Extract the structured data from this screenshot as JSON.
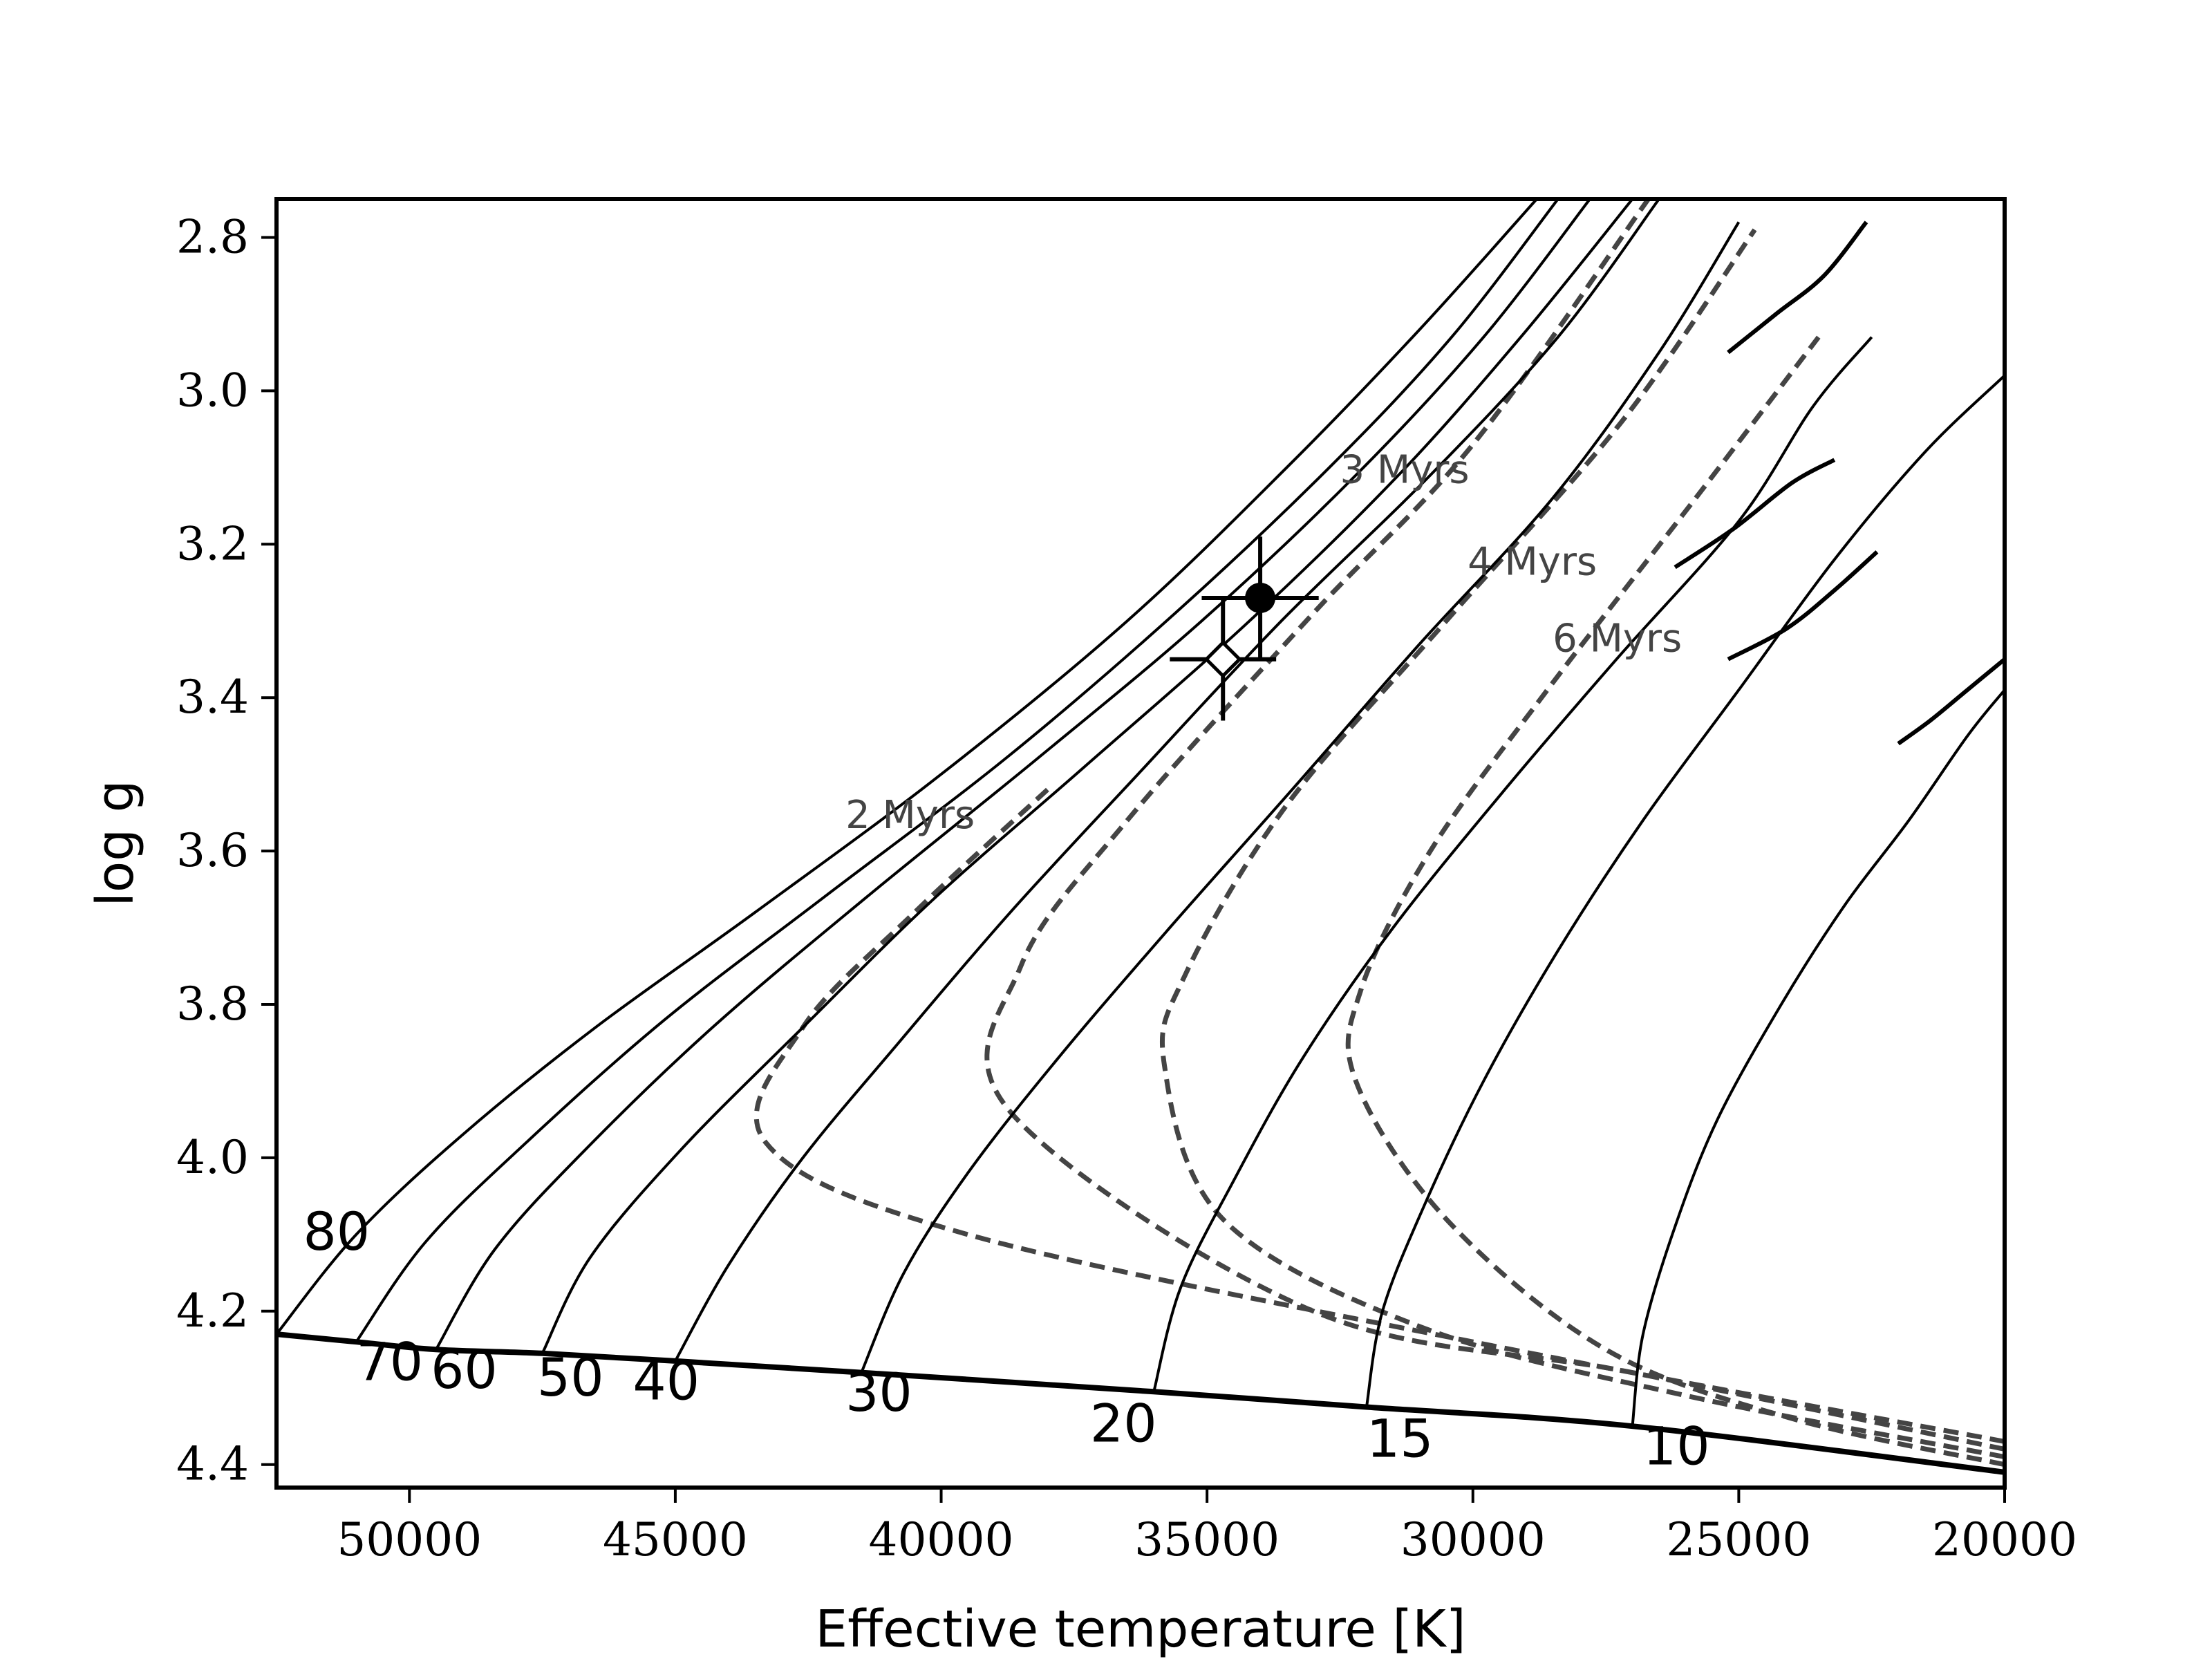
{
  "chart_data": {
    "type": "line",
    "title": "",
    "xlabel": "Effective temperature [K]",
    "ylabel": "log g",
    "xlim": [
      52500,
      20000
    ],
    "ylim": [
      4.43,
      2.75
    ],
    "x_inverted": true,
    "y_inverted": true,
    "x_ticks": [
      50000,
      45000,
      40000,
      35000,
      30000,
      25000,
      20000
    ],
    "x_tick_labels": [
      "50000",
      "45000",
      "40000",
      "35000",
      "30000",
      "25000",
      "20000"
    ],
    "y_ticks": [
      2.8,
      3.0,
      3.2,
      3.4,
      3.6,
      3.8,
      4.0,
      4.2,
      4.4
    ],
    "y_tick_labels": [
      "2.8",
      "3.0",
      "3.2",
      "3.4",
      "3.6",
      "3.8",
      "4.0",
      "4.2",
      "4.4"
    ],
    "grid": false,
    "legend": "none",
    "colors": {
      "tracks": "#000000",
      "isochrones": "#444444",
      "zams": "#000000"
    },
    "zams": {
      "x": [
        52500,
        51000,
        49500,
        47500,
        45000,
        41500,
        36000,
        32000,
        27000,
        20000
      ],
      "y": [
        4.23,
        4.24,
        4.25,
        4.255,
        4.265,
        4.28,
        4.305,
        4.325,
        4.35,
        4.41
      ]
    },
    "tracks": [
      {
        "mass_label": "80",
        "x": [
          52500,
          51000,
          49000,
          46500,
          43500,
          40000,
          36500,
          33500,
          31000,
          28800
        ],
        "y": [
          4.23,
          4.1,
          3.97,
          3.83,
          3.68,
          3.5,
          3.3,
          3.1,
          2.92,
          2.75
        ]
      },
      {
        "mass_label": "70",
        "x": [
          51000,
          49700,
          47800,
          45200,
          42200,
          38800,
          35600,
          32700,
          30400,
          28400
        ],
        "y": [
          4.24,
          4.11,
          3.98,
          3.82,
          3.66,
          3.48,
          3.29,
          3.1,
          2.93,
          2.75
        ]
      },
      {
        "mass_label": "60",
        "x": [
          49500,
          48400,
          46700,
          44300,
          41400,
          38200,
          35100,
          32200,
          29800,
          27800
        ],
        "y": [
          4.25,
          4.12,
          3.99,
          3.83,
          3.66,
          3.48,
          3.3,
          3.11,
          2.93,
          2.75
        ]
      },
      {
        "mass_label": "50",
        "x": [
          47500,
          46600,
          44900,
          42600,
          40100,
          37300,
          34200,
          31400,
          29100,
          27000
        ],
        "y": [
          4.255,
          4.13,
          3.99,
          3.83,
          3.66,
          3.49,
          3.3,
          3.11,
          2.93,
          2.75
        ]
      },
      {
        "mass_label": "40",
        "x": [
          45000,
          44000,
          42600,
          40800,
          38700,
          36300,
          33600,
          30800,
          28400,
          26500
        ],
        "y": [
          4.265,
          4.14,
          4.0,
          3.85,
          3.68,
          3.5,
          3.3,
          3.11,
          2.93,
          2.75
        ]
      },
      {
        "mass_label": "30",
        "x": [
          41500,
          40700,
          39500,
          37800,
          35700,
          33400,
          31000,
          28500,
          26500,
          25000
        ],
        "y": [
          4.28,
          4.15,
          4.02,
          3.87,
          3.7,
          3.52,
          3.33,
          3.14,
          2.95,
          2.78
        ]
      },
      {
        "mass_label": "20",
        "x": [
          36000,
          35500,
          34500,
          33200,
          31500,
          29400,
          27300,
          25000,
          23600,
          22500
        ],
        "y": [
          4.305,
          4.17,
          4.03,
          3.87,
          3.7,
          3.52,
          3.35,
          3.17,
          3.02,
          2.93
        ]
      },
      {
        "mass_label": "15",
        "x": [
          32000,
          31700,
          30900,
          29800,
          28400,
          26800,
          25000,
          23200,
          21500,
          20000
        ],
        "y": [
          4.325,
          4.2,
          4.06,
          3.9,
          3.73,
          3.56,
          3.39,
          3.22,
          3.08,
          2.98
        ]
      },
      {
        "mass_label": "10",
        "x": [
          27000,
          26800,
          26200,
          25400,
          24200,
          23000,
          21800,
          20700,
          20000
        ],
        "y": [
          4.35,
          4.23,
          4.09,
          3.95,
          3.8,
          3.67,
          3.56,
          3.45,
          3.39
        ]
      }
    ],
    "track_hooks": [
      {
        "x": [
          25200,
          24300,
          23400,
          22600
        ],
        "y": [
          2.95,
          2.9,
          2.85,
          2.78
        ]
      },
      {
        "x": [
          26200,
          25100,
          24000,
          23200
        ],
        "y": [
          3.23,
          3.18,
          3.12,
          3.09
        ]
      },
      {
        "x": [
          25200,
          24100,
          23200,
          22400
        ],
        "y": [
          3.35,
          3.31,
          3.26,
          3.21
        ]
      },
      {
        "x": [
          22000,
          21400,
          20700,
          20000
        ],
        "y": [
          3.46,
          3.43,
          3.39,
          3.35
        ]
      }
    ],
    "isochrones": [
      {
        "label": "2 Myrs",
        "x": [
          20000,
          30000,
          39500,
          43300,
          42600,
          40500,
          38000
        ],
        "y": [
          4.37,
          4.24,
          4.1,
          3.98,
          3.83,
          3.68,
          3.52
        ]
      },
      {
        "label": "3 Myrs",
        "x": [
          20000,
          27000,
          33000,
          38700,
          38500,
          36500,
          33000,
          30000,
          26700
        ],
        "y": [
          4.38,
          4.28,
          4.2,
          3.94,
          3.75,
          3.56,
          3.29,
          3.07,
          2.75
        ]
      },
      {
        "label": "4 Myrs",
        "x": [
          20000,
          26000,
          31000,
          34700,
          35800,
          35400,
          33500,
          30500,
          27200,
          24700
        ],
        "y": [
          4.39,
          4.31,
          4.22,
          4.08,
          3.88,
          3.76,
          3.54,
          3.3,
          3.04,
          2.79
        ]
      },
      {
        "label": "6 Myrs",
        "x": [
          20000,
          24000,
          27500,
          30500,
          32200,
          32100,
          30800,
          28600,
          25700,
          23500
        ],
        "y": [
          4.4,
          4.34,
          4.25,
          4.08,
          3.9,
          3.78,
          3.6,
          3.39,
          3.13,
          2.93
        ]
      }
    ],
    "isochrone_labels": [
      {
        "text": "2 Myrs",
        "x": 41800,
        "y": 3.57
      },
      {
        "text": "3 Myrs",
        "x": 32500,
        "y": 3.12
      },
      {
        "text": "4 Myrs",
        "x": 30100,
        "y": 3.24
      },
      {
        "text": "6 Myrs",
        "x": 28500,
        "y": 3.34
      }
    ],
    "mass_labels": [
      {
        "text": "80",
        "x": 52000,
        "y": 4.12
      },
      {
        "text": "70",
        "x": 51000,
        "y": 4.29
      },
      {
        "text": "60",
        "x": 49600,
        "y": 4.3
      },
      {
        "text": "50",
        "x": 47600,
        "y": 4.31
      },
      {
        "text": "40",
        "x": 45800,
        "y": 4.315
      },
      {
        "text": "30",
        "x": 41800,
        "y": 4.33
      },
      {
        "text": "20",
        "x": 37200,
        "y": 4.37
      },
      {
        "text": "15",
        "x": 32000,
        "y": 4.39
      },
      {
        "text": "10",
        "x": 26800,
        "y": 4.4
      }
    ],
    "observations": [
      {
        "marker": "filled-circle",
        "teff": 34000,
        "logg": 3.27,
        "teff_err": 1100,
        "logg_err": 0.08
      },
      {
        "marker": "open-diamond",
        "teff": 34700,
        "logg": 3.35,
        "teff_err": 1000,
        "logg_err": 0.08
      }
    ]
  }
}
